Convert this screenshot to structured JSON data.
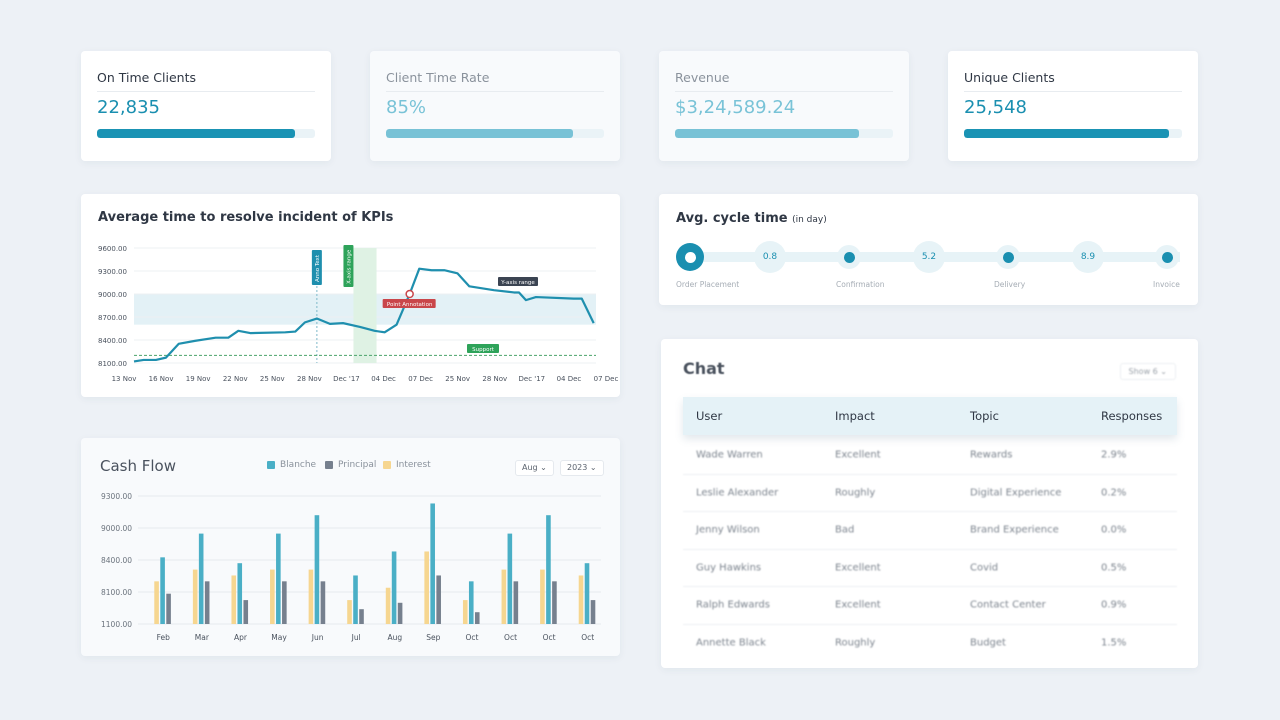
{
  "kpis": [
    {
      "title": "On Time Clients",
      "value": "22,835",
      "progress": 0.91,
      "muted": false
    },
    {
      "title": "Client Time Rate",
      "value": "85%",
      "progress": 0.86,
      "muted": true
    },
    {
      "title": "Revenue",
      "value": "$3,24,589.24",
      "progress": 0.845,
      "muted": true
    },
    {
      "title": "Unique Clients",
      "value": "25,548",
      "progress": 0.94,
      "muted": false
    }
  ],
  "colors": {
    "accent": "#1a93b4",
    "accent_light": "#78c2d6",
    "blanche": "#4aafc6",
    "principal": "#76808e",
    "interest": "#f6d690"
  },
  "chart_data": [
    {
      "type": "line",
      "title": "Average time to resolve incident of KPIs",
      "categories": [
        "13 Nov",
        "16 Nov",
        "19 Nov",
        "22 Nov",
        "25 Nov",
        "28 Nov",
        "Dec '17",
        "04 Dec",
        "07 Dec",
        "25 Nov",
        "28 Nov",
        "Dec '17",
        "04 Dec",
        "07 Dec"
      ],
      "y_ticks": [
        "9600.00",
        "9300.00",
        "9000.00",
        "8700.00",
        "8400.00",
        "8100.00"
      ],
      "ylim": [
        8100,
        9600
      ],
      "grid": true,
      "points": [
        [
          0,
          8120
        ],
        [
          0.25,
          8140
        ],
        [
          0.57,
          8140
        ],
        [
          0.83,
          8170
        ],
        [
          1.16,
          8350
        ],
        [
          1.6,
          8390
        ],
        [
          2.12,
          8430
        ],
        [
          2.45,
          8430
        ],
        [
          2.71,
          8520
        ],
        [
          3.02,
          8490
        ],
        [
          3.93,
          8500
        ],
        [
          4.19,
          8510
        ],
        [
          4.44,
          8630
        ],
        [
          4.75,
          8680
        ],
        [
          5.09,
          8610
        ],
        [
          5.43,
          8620
        ],
        [
          5.87,
          8570
        ],
        [
          6.25,
          8520
        ],
        [
          6.51,
          8500
        ],
        [
          6.82,
          8600
        ],
        [
          7.16,
          9000
        ],
        [
          7.41,
          9330
        ],
        [
          7.73,
          9310
        ],
        [
          8.06,
          9310
        ],
        [
          8.4,
          9270
        ],
        [
          8.71,
          9100
        ],
        [
          9.35,
          9050
        ],
        [
          9.87,
          9020
        ],
        [
          10.0,
          9020
        ],
        [
          10.18,
          8920
        ],
        [
          10.44,
          8960
        ],
        [
          11.42,
          8940
        ],
        [
          11.63,
          8940
        ],
        [
          11.94,
          8620
        ]
      ],
      "annotations": {
        "vertical_line": {
          "label": "Anno Text",
          "x": 4.75
        },
        "x_range": {
          "label": "X-axis range",
          "from": 5.7,
          "to": 6.3
        },
        "y_range": {
          "label": "Y-axis range",
          "from": 8600,
          "to": 9000
        },
        "point": {
          "label": "Point Annotation",
          "x": 7.16,
          "y": 9000
        },
        "support": {
          "label": "Support",
          "y": 8200
        }
      }
    },
    {
      "type": "bar",
      "title": "Cash Flow",
      "categories": [
        "Feb",
        "Mar",
        "Apr",
        "May",
        "Jun",
        "Jul",
        "Aug",
        "Sep",
        "Oct",
        "Oct",
        "Oct",
        "Oct"
      ],
      "y_ticks": [
        1100,
        8100,
        8400,
        9000,
        9300
      ],
      "y_tick_labels": [
        "1100.00",
        "8100.00",
        "8400.00",
        "9000.00",
        "9300.00"
      ],
      "grid": true,
      "legend": "top",
      "series": [
        {
          "name": "Interest",
          "values": [
            8200,
            8310,
            8255,
            8310,
            8310,
            6330,
            8140,
            8560,
            6330,
            8310,
            8310,
            8255
          ]
        },
        {
          "name": "Blanche",
          "values": [
            8450,
            8895,
            8370,
            8895,
            9120,
            8255,
            8560,
            9230,
            8200,
            8895,
            9120,
            8370
          ]
        },
        {
          "name": "Principal",
          "values": [
            7730,
            8200,
            6330,
            8200,
            8200,
            4340,
            5740,
            8255,
            3680,
            8200,
            8200,
            6330
          ]
        }
      ]
    }
  ],
  "cashflow": {
    "legend": [
      "Blanche",
      "Principal",
      "Interest"
    ],
    "month_select": "Aug",
    "year_select": "2023"
  },
  "cycle": {
    "title": "Avg. cycle time",
    "unit": "(in day)",
    "steps": [
      "Order Placement",
      "Confirmation",
      "Delivery",
      "Invoice"
    ],
    "values": [
      "0.8",
      "5.2",
      "8.9"
    ]
  },
  "chat": {
    "title": "Chat",
    "show": "Show 6",
    "columns": [
      "User",
      "Impact",
      "Topic",
      "Responses"
    ],
    "rows": [
      [
        "Wade Warren",
        "Excellent",
        "Rewards",
        "2.9%"
      ],
      [
        "Leslie Alexander",
        "Roughly",
        "Digital Experience",
        "0.2%"
      ],
      [
        "Jenny Wilson",
        "Bad",
        "Brand Experience",
        "0.0%"
      ],
      [
        "Guy Hawkins",
        "Excellent",
        "Covid",
        "0.5%"
      ],
      [
        "Ralph Edwards",
        "Excellent",
        "Contact Center",
        "0.9%"
      ],
      [
        "Annette Black",
        "Roughly",
        "Budget",
        "1.5%"
      ]
    ]
  }
}
